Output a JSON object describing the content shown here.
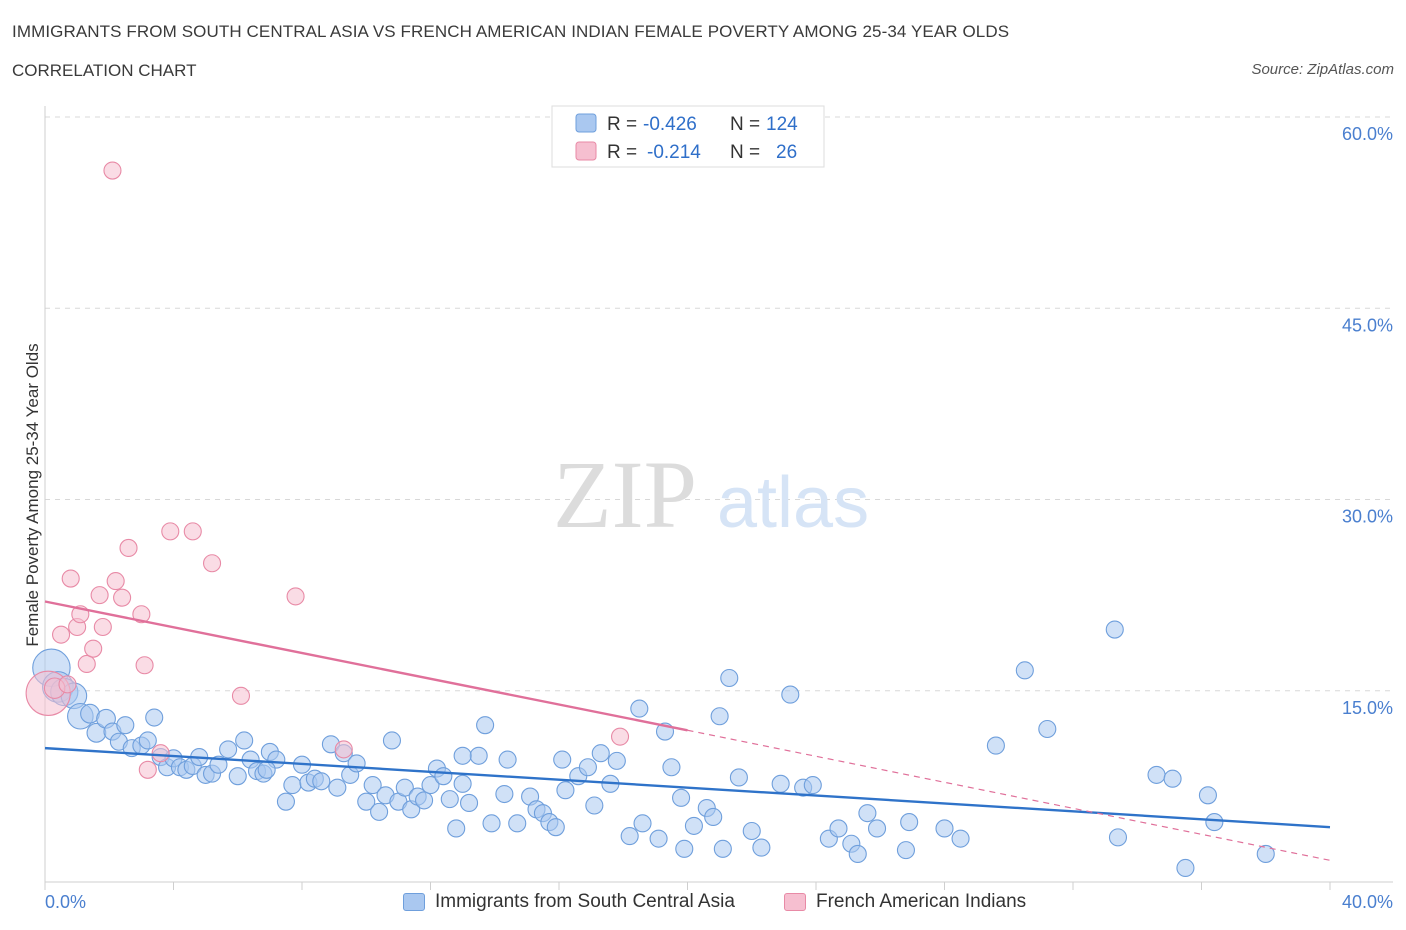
{
  "header": {
    "title": "IMMIGRANTS FROM SOUTH CENTRAL ASIA VS FRENCH AMERICAN INDIAN FEMALE POVERTY AMONG 25-34 YEAR OLDS",
    "subtitle": "CORRELATION CHART",
    "source": "Source: ZipAtlas.com"
  },
  "watermark": {
    "zip": "ZIP",
    "atlas": "atlas"
  },
  "colors": {
    "blue_fill": "#aac8f0",
    "blue_stroke": "#6f9fdc",
    "blue_line": "#2f73c9",
    "pink_fill": "#f6bfd0",
    "pink_stroke": "#e88aa6",
    "pink_line": "#e0709a",
    "tick_label": "#4a7fcf",
    "grid": "#d8d8d8"
  },
  "legend_top": {
    "rows": [
      {
        "r_label": "R =",
        "r_value": "-0.426",
        "n_label": "N =",
        "n_value": "124",
        "color": "blue"
      },
      {
        "r_label": "R =",
        "r_value": "-0.214",
        "n_label": "N =",
        "n_value": "26",
        "color": "pink"
      }
    ]
  },
  "legend_bottom": {
    "items": [
      {
        "label": "Immigrants from South Central Asia",
        "color": "blue"
      },
      {
        "label": "French American Indians",
        "color": "pink"
      }
    ]
  },
  "chart_data": {
    "type": "scatter",
    "title": "IMMIGRANTS FROM SOUTH CENTRAL ASIA VS FRENCH AMERICAN INDIAN FEMALE POVERTY AMONG 25-34 YEAR OLDS",
    "xlabel": "",
    "ylabel": "Female Poverty Among 25-34 Year Olds",
    "xlim": [
      0,
      40
    ],
    "ylim": [
      0,
      60
    ],
    "x_tick_labels": [
      {
        "value": 0,
        "label": "0.0%"
      },
      {
        "value": 40,
        "label": "40.0%"
      }
    ],
    "y_tick_labels": [
      {
        "value": 15,
        "label": "15.0%"
      },
      {
        "value": 30,
        "label": "30.0%"
      },
      {
        "value": 45,
        "label": "45.0%"
      },
      {
        "value": 60,
        "label": "60.0%"
      }
    ],
    "y_gridlines": [
      15,
      30,
      45,
      60
    ],
    "x_minor_ticks": [
      0,
      4,
      8,
      12,
      16,
      20,
      24,
      28,
      32,
      36,
      40
    ],
    "legend_position": "top-center",
    "series": [
      {
        "name": "Immigrants from South Central Asia",
        "color": "blue",
        "trend": {
          "x": [
            0,
            40
          ],
          "y": [
            10.5,
            4.3
          ]
        },
        "points": [
          [
            0.2,
            16.8,
            2.2
          ],
          [
            0.4,
            15.3,
            1.8
          ],
          [
            0.6,
            14.9,
            1.6
          ],
          [
            0.9,
            14.6,
            1.5
          ],
          [
            1.1,
            13.0,
            1.5
          ],
          [
            1.4,
            13.2,
            1.1
          ],
          [
            1.6,
            11.7,
            1.1
          ],
          [
            1.9,
            12.8,
            1.1
          ],
          [
            2.1,
            11.8,
            1.0
          ],
          [
            2.3,
            11.0,
            1.0
          ],
          [
            2.5,
            12.3,
            1.0
          ],
          [
            2.7,
            10.5,
            1.0
          ],
          [
            3.0,
            10.7,
            1.0
          ],
          [
            3.2,
            11.1,
            1.0
          ],
          [
            3.4,
            12.9,
            1.0
          ],
          [
            3.6,
            9.8,
            1.0
          ],
          [
            3.8,
            9.0,
            1.0
          ],
          [
            4.0,
            9.7,
            1.0
          ],
          [
            4.2,
            9.0,
            1.0
          ],
          [
            4.4,
            8.8,
            1.0
          ],
          [
            4.6,
            9.1,
            1.0
          ],
          [
            4.8,
            9.8,
            1.0
          ],
          [
            5.0,
            8.4,
            1.0
          ],
          [
            5.2,
            8.5,
            1.0
          ],
          [
            5.4,
            9.2,
            1.0
          ],
          [
            5.7,
            10.4,
            1.0
          ],
          [
            6.0,
            8.3,
            1.0
          ],
          [
            6.2,
            11.1,
            1.0
          ],
          [
            6.4,
            9.6,
            1.0
          ],
          [
            6.6,
            8.7,
            1.0
          ],
          [
            6.8,
            8.5,
            1.0
          ],
          [
            7.0,
            10.2,
            1.0
          ],
          [
            7.2,
            9.6,
            1.0
          ],
          [
            7.5,
            6.3,
            1.0
          ],
          [
            7.7,
            7.6,
            1.0
          ],
          [
            8.0,
            9.2,
            1.0
          ],
          [
            8.2,
            7.8,
            1.0
          ],
          [
            8.4,
            8.1,
            1.0
          ],
          [
            8.6,
            7.9,
            1.0
          ],
          [
            8.9,
            10.8,
            1.0
          ],
          [
            9.1,
            7.4,
            1.0
          ],
          [
            9.3,
            10.1,
            1.0
          ],
          [
            9.5,
            8.4,
            1.0
          ],
          [
            9.7,
            9.3,
            1.0
          ],
          [
            10.0,
            6.3,
            1.0
          ],
          [
            10.2,
            7.6,
            1.0
          ],
          [
            10.4,
            5.5,
            1.0
          ],
          [
            10.6,
            6.8,
            1.0
          ],
          [
            10.8,
            11.1,
            1.0
          ],
          [
            11.0,
            6.3,
            1.0
          ],
          [
            11.2,
            7.4,
            1.0
          ],
          [
            11.4,
            5.7,
            1.0
          ],
          [
            11.6,
            6.7,
            1.0
          ],
          [
            11.8,
            6.4,
            1.0
          ],
          [
            12.0,
            7.6,
            1.0
          ],
          [
            12.2,
            8.9,
            1.0
          ],
          [
            12.4,
            8.3,
            1.0
          ],
          [
            12.6,
            6.5,
            1.0
          ],
          [
            12.8,
            4.2,
            1.0
          ],
          [
            13.0,
            7.7,
            1.0
          ],
          [
            13.2,
            6.2,
            1.0
          ],
          [
            13.5,
            9.9,
            1.0
          ],
          [
            13.7,
            12.3,
            1.0
          ],
          [
            13.9,
            4.6,
            1.0
          ],
          [
            14.3,
            6.9,
            1.0
          ],
          [
            14.4,
            9.6,
            1.0
          ],
          [
            14.7,
            4.6,
            1.0
          ],
          [
            15.1,
            6.7,
            1.0
          ],
          [
            15.3,
            5.7,
            1.0
          ],
          [
            15.5,
            5.4,
            1.0
          ],
          [
            15.7,
            4.7,
            1.0
          ],
          [
            15.9,
            4.3,
            1.0
          ],
          [
            16.1,
            9.6,
            1.0
          ],
          [
            16.2,
            7.2,
            1.0
          ],
          [
            16.6,
            8.3,
            1.0
          ],
          [
            16.9,
            9.0,
            1.0
          ],
          [
            17.1,
            6.0,
            1.0
          ],
          [
            17.3,
            10.1,
            1.0
          ],
          [
            17.6,
            7.7,
            1.0
          ],
          [
            17.8,
            9.5,
            1.0
          ],
          [
            18.2,
            3.6,
            1.0
          ],
          [
            18.6,
            4.6,
            1.0
          ],
          [
            18.5,
            13.6,
            1.0
          ],
          [
            19.1,
            3.4,
            1.0
          ],
          [
            19.3,
            11.8,
            1.0
          ],
          [
            19.5,
            9.0,
            1.0
          ],
          [
            19.8,
            6.6,
            1.0
          ],
          [
            19.9,
            2.6,
            1.0
          ],
          [
            20.2,
            4.4,
            1.0
          ],
          [
            20.6,
            5.8,
            1.0
          ],
          [
            20.8,
            5.1,
            1.0
          ],
          [
            21.0,
            13.0,
            1.0
          ],
          [
            21.1,
            2.6,
            1.0
          ],
          [
            21.3,
            16.0,
            1.0
          ],
          [
            21.6,
            8.2,
            1.0
          ],
          [
            22.0,
            4.0,
            1.0
          ],
          [
            22.3,
            2.7,
            1.0
          ],
          [
            22.9,
            7.7,
            1.0
          ],
          [
            23.2,
            14.7,
            1.0
          ],
          [
            23.6,
            7.4,
            1.0
          ],
          [
            23.9,
            7.6,
            1.0
          ],
          [
            24.4,
            3.4,
            1.0
          ],
          [
            24.7,
            4.2,
            1.0
          ],
          [
            25.1,
            3.0,
            1.0
          ],
          [
            25.3,
            2.2,
            1.0
          ],
          [
            25.6,
            5.4,
            1.0
          ],
          [
            25.9,
            4.2,
            1.0
          ],
          [
            26.8,
            2.5,
            1.0
          ],
          [
            26.9,
            4.7,
            1.0
          ],
          [
            28.0,
            4.2,
            1.0
          ],
          [
            28.5,
            3.4,
            1.0
          ],
          [
            29.6,
            10.7,
            1.0
          ],
          [
            30.5,
            16.6,
            1.0
          ],
          [
            31.2,
            12.0,
            1.0
          ],
          [
            33.3,
            19.8,
            1.0
          ],
          [
            33.4,
            3.5,
            1.0
          ],
          [
            34.6,
            8.4,
            1.0
          ],
          [
            35.1,
            8.1,
            1.0
          ],
          [
            35.5,
            1.1,
            1.0
          ],
          [
            36.2,
            6.8,
            1.0
          ],
          [
            36.4,
            4.7,
            1.0
          ],
          [
            38.0,
            2.2,
            1.0
          ],
          [
            6.9,
            8.8,
            1.0
          ],
          [
            13.0,
            9.9,
            1.0
          ]
        ]
      },
      {
        "name": "French American Indians",
        "color": "pink",
        "trend": {
          "x": [
            0,
            20
          ],
          "y": [
            22.0,
            11.9
          ]
        },
        "trend_extension": {
          "x": [
            20,
            40
          ],
          "y": [
            11.9,
            1.7
          ]
        },
        "points": [
          [
            0.1,
            14.8,
            2.6
          ],
          [
            0.5,
            19.4,
            1.0
          ],
          [
            0.8,
            23.8,
            1.0
          ],
          [
            1.0,
            20.0,
            1.0
          ],
          [
            1.1,
            21.0,
            1.0
          ],
          [
            1.3,
            17.1,
            1.0
          ],
          [
            1.5,
            18.3,
            1.0
          ],
          [
            1.7,
            22.5,
            1.0
          ],
          [
            1.8,
            20.0,
            1.0
          ],
          [
            2.1,
            55.8,
            1.0
          ],
          [
            2.2,
            23.6,
            1.0
          ],
          [
            2.4,
            22.3,
            1.0
          ],
          [
            2.6,
            26.2,
            1.0
          ],
          [
            3.0,
            21.0,
            1.0
          ],
          [
            3.1,
            17.0,
            1.0
          ],
          [
            3.2,
            8.8,
            1.0
          ],
          [
            3.6,
            10.1,
            1.0
          ],
          [
            3.9,
            27.5,
            1.0
          ],
          [
            4.6,
            27.5,
            1.0
          ],
          [
            5.2,
            25.0,
            1.0
          ],
          [
            6.1,
            14.6,
            1.0
          ],
          [
            7.8,
            22.4,
            1.0
          ],
          [
            9.3,
            10.4,
            1.0
          ],
          [
            17.9,
            11.4,
            1.0
          ],
          [
            0.3,
            15.2,
            1.2
          ],
          [
            0.7,
            15.5,
            1.0
          ]
        ]
      }
    ]
  }
}
